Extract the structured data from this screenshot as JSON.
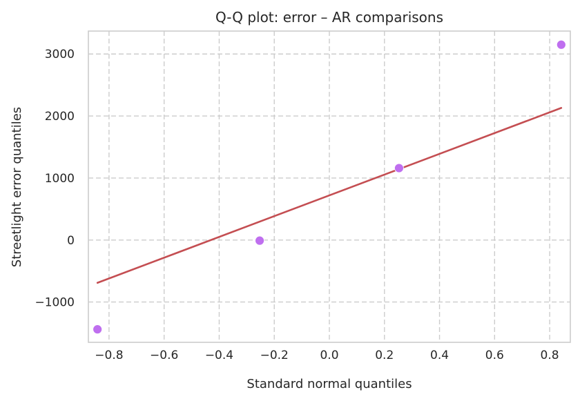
{
  "chart_data": {
    "type": "scatter",
    "title": "Q-Q plot: error – AR comparisons",
    "xlabel": "Standard normal quantiles",
    "ylabel": "Streetlight error quantiles",
    "xlim": [
      -0.875,
      0.875
    ],
    "ylim": [
      -1650,
      3370
    ],
    "xticks": [
      -0.8,
      -0.6,
      -0.4,
      -0.2,
      0.0,
      0.2,
      0.4,
      0.6,
      0.8
    ],
    "xtick_labels": [
      "−0.8",
      "−0.6",
      "−0.4",
      "−0.2",
      "0.0",
      "0.2",
      "0.4",
      "0.6",
      "0.8"
    ],
    "yticks": [
      -1000,
      0,
      1000,
      2000,
      3000
    ],
    "ytick_labels": [
      "−1000",
      "0",
      "1000",
      "2000",
      "3000"
    ],
    "grid": true,
    "points": {
      "x": [
        -0.842,
        -0.253,
        0.253,
        0.842
      ],
      "y": [
        -1440,
        -10,
        1160,
        3150
      ],
      "color": "#bf6fef"
    },
    "fit_line": {
      "x": [
        -0.842,
        0.842
      ],
      "y": [
        -690,
        2130
      ],
      "color": "#c44e52"
    }
  }
}
